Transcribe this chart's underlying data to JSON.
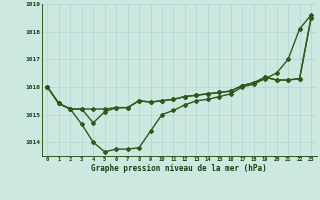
{
  "series1": [
    1016.0,
    1015.4,
    1015.2,
    1014.65,
    1014.0,
    1013.65,
    1013.75,
    1013.75,
    1013.8,
    1014.4,
    1015.0,
    1015.15,
    1015.35,
    1015.5,
    1015.55,
    1015.65,
    1015.75,
    1016.0,
    1016.1,
    1016.3,
    1016.5,
    1017.0,
    1018.1,
    1018.6
  ],
  "series2": [
    1016.0,
    1015.4,
    1015.2,
    1015.2,
    1014.7,
    1015.1,
    1015.25,
    1015.25,
    1015.5,
    1015.45,
    1015.5,
    1015.55,
    1015.65,
    1015.7,
    1015.75,
    1015.8,
    1015.85,
    1016.05,
    1016.15,
    1016.35,
    1016.25,
    1016.25,
    1016.3,
    1018.5
  ],
  "series3": [
    1016.0,
    1015.4,
    1015.2,
    1015.2,
    1015.2,
    1015.2,
    1015.25,
    1015.25,
    1015.5,
    1015.45,
    1015.5,
    1015.55,
    1015.65,
    1015.7,
    1015.75,
    1015.8,
    1015.85,
    1016.05,
    1016.15,
    1016.35,
    1016.25,
    1016.25,
    1016.3,
    1018.5
  ],
  "x": [
    0,
    1,
    2,
    3,
    4,
    5,
    6,
    7,
    8,
    9,
    10,
    11,
    12,
    13,
    14,
    15,
    16,
    17,
    18,
    19,
    20,
    21,
    22,
    23
  ],
  "ylim": [
    1013.5,
    1019.0
  ],
  "yticks": [
    1014,
    1015,
    1016,
    1017,
    1018,
    1019
  ],
  "line_color": "#2d5a1b",
  "bg_color": "#cce8e0",
  "grid_color": "#b0d8ce",
  "xlabel": "Graphe pression niveau de la mer (hPa)",
  "xlabel_color": "#1a3d0e",
  "markersize": 2.0,
  "linewidth": 1.0
}
